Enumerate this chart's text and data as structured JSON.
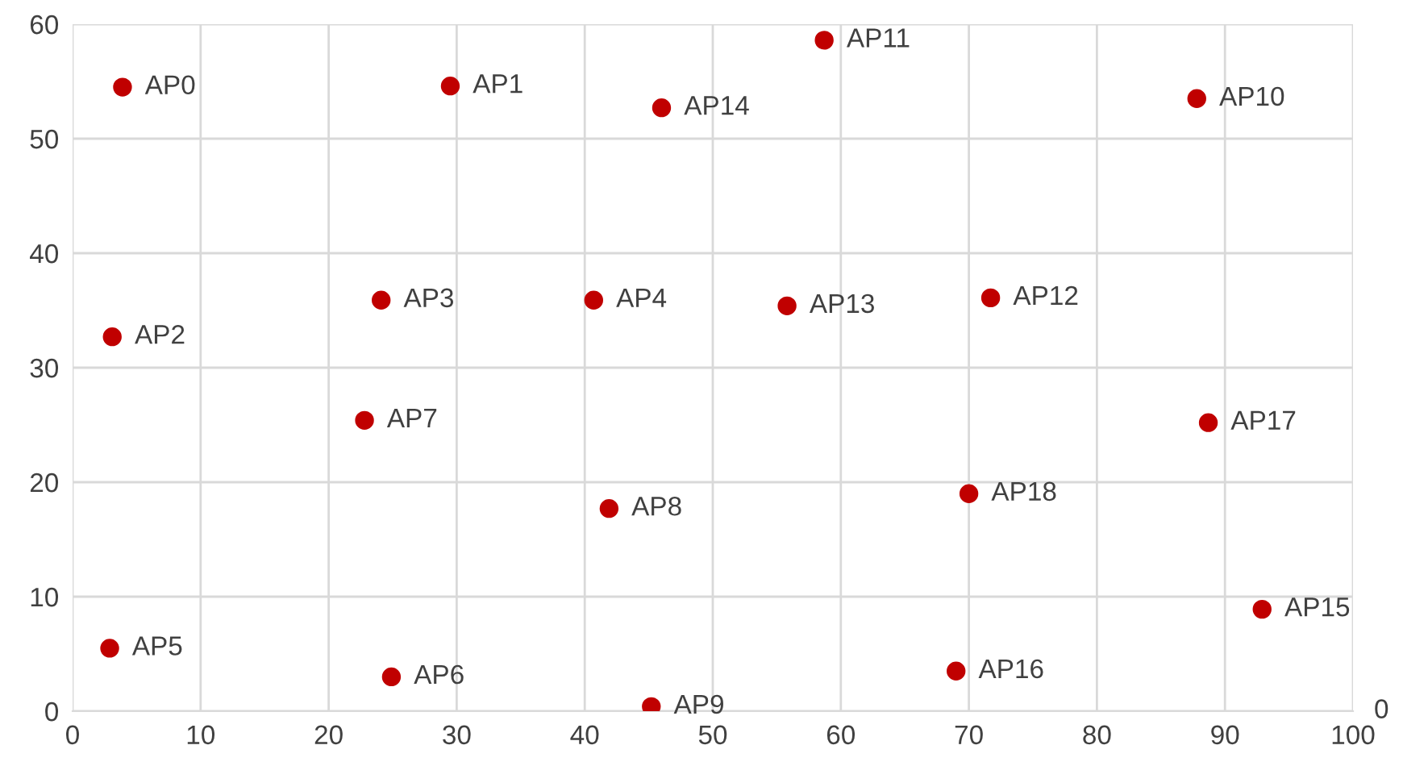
{
  "chart_data": {
    "type": "scatter",
    "xlim": [
      0,
      100
    ],
    "ylim": [
      0,
      60
    ],
    "xticks": [
      0,
      10,
      20,
      30,
      40,
      50,
      60,
      70,
      80,
      90,
      100
    ],
    "yticks": [
      0,
      10,
      20,
      30,
      40,
      50,
      60
    ],
    "grid": true,
    "marker": "circle",
    "series": [
      {
        "color": "#c00000",
        "x": [
          3.9,
          29.5,
          3.1,
          24.1,
          40.7,
          2.9,
          24.9,
          22.8,
          41.9,
          45.2,
          87.8,
          58.7,
          71.7,
          55.8,
          46.0,
          92.9,
          69.0,
          88.7,
          70.0
        ],
        "values": [
          54.5,
          54.6,
          32.7,
          35.9,
          35.9,
          5.5,
          3.0,
          25.4,
          17.7,
          0.4,
          53.5,
          58.6,
          36.1,
          35.4,
          52.7,
          8.9,
          3.5,
          25.2,
          19.0
        ]
      }
    ],
    "annotations": [
      {
        "text": "AP0",
        "x": 3.9,
        "y": 54.5
      },
      {
        "text": "AP1",
        "x": 29.5,
        "y": 54.6
      },
      {
        "text": "AP2",
        "x": 3.1,
        "y": 32.7
      },
      {
        "text": "AP3",
        "x": 24.1,
        "y": 35.9
      },
      {
        "text": "AP4",
        "x": 40.7,
        "y": 35.9
      },
      {
        "text": "AP5",
        "x": 2.9,
        "y": 5.5
      },
      {
        "text": "AP6",
        "x": 24.9,
        "y": 3.0
      },
      {
        "text": "AP7",
        "x": 22.8,
        "y": 25.4
      },
      {
        "text": "AP8",
        "x": 41.9,
        "y": 17.7
      },
      {
        "text": "AP9",
        "x": 45.2,
        "y": 0.4
      },
      {
        "text": "AP10",
        "x": 87.8,
        "y": 53.5
      },
      {
        "text": "AP11",
        "x": 58.7,
        "y": 58.6
      },
      {
        "text": "AP12",
        "x": 71.7,
        "y": 36.1
      },
      {
        "text": "AP13",
        "x": 55.8,
        "y": 35.4
      },
      {
        "text": "AP14",
        "x": 46.0,
        "y": 52.7
      },
      {
        "text": "AP15",
        "x": 92.9,
        "y": 8.9
      },
      {
        "text": "AP16",
        "x": 69.0,
        "y": 3.5
      },
      {
        "text": "AP17",
        "x": 88.7,
        "y": 25.2
      },
      {
        "text": "AP18",
        "x": 70.0,
        "y": 19.0
      },
      "0"
    ]
  }
}
